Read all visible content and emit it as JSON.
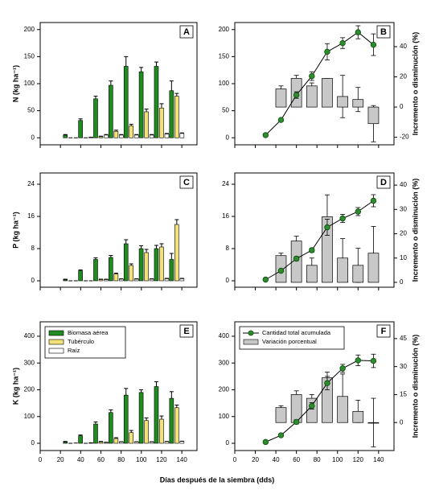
{
  "chart_data": [
    {
      "type": "bar",
      "label": "A",
      "ylabel": "N (kg ha⁻¹)",
      "x": [
        30,
        45,
        60,
        75,
        90,
        105,
        120,
        135
      ],
      "series": [
        {
          "color": "#1e8c1e",
          "values": [
            5,
            32,
            72,
            97,
            132,
            122,
            132,
            87
          ],
          "errors": [
            1,
            3,
            5,
            8,
            18,
            8,
            8,
            18
          ]
        },
        {
          "color": "#f3e27a",
          "values": [
            0,
            0,
            2,
            12,
            22,
            48,
            55,
            77
          ],
          "errors": [
            0,
            0,
            1,
            2,
            3,
            5,
            8,
            5
          ]
        },
        {
          "color": "#ffffff",
          "values": [
            0,
            1,
            5,
            5,
            5,
            5,
            7,
            8
          ],
          "errors": [
            0,
            0,
            1,
            1,
            1,
            1,
            1,
            1
          ]
        }
      ],
      "xlim": [
        0,
        155
      ],
      "xticks": [
        0,
        20,
        40,
        60,
        80,
        100,
        120,
        140
      ],
      "ylim": [
        -13,
        213
      ],
      "yticks": [
        0,
        50,
        100,
        150,
        200
      ]
    },
    {
      "type": "combo",
      "label": "B",
      "y2label": "Incremento o disminución (%)",
      "series": [
        {
          "color": "#2e8b2e",
          "x": [
            30,
            45,
            60,
            75,
            90,
            105,
            120,
            135
          ],
          "values": [
            5,
            33,
            79,
            114,
            159,
            175,
            195,
            172
          ],
          "errors": [
            0,
            3,
            6,
            8,
            15,
            10,
            12,
            20
          ]
        },
        {
          "color": "#c8c8c8",
          "axis": "y2",
          "x": [
            45,
            60,
            75,
            90,
            105,
            120,
            135
          ],
          "values": [
            12,
            19,
            14,
            19,
            7,
            5,
            -11
          ],
          "errors": [
            2,
            2,
            2,
            0,
            14,
            8,
            12
          ]
        }
      ],
      "xlim": [
        0,
        155
      ],
      "xticks": [
        0,
        20,
        40,
        60,
        80,
        100,
        120,
        140
      ],
      "ylim": [
        -13,
        213
      ],
      "yticks": [
        0,
        50,
        100,
        150,
        200
      ],
      "y2lim": [
        -25,
        56
      ],
      "y2ticks": [
        -20,
        0,
        20,
        40
      ]
    },
    {
      "type": "bar",
      "label": "C",
      "ylabel": "P (kg ha⁻¹)",
      "x": [
        30,
        45,
        60,
        75,
        90,
        105,
        120,
        135
      ],
      "series": [
        {
          "color": "#1e8c1e",
          "values": [
            0.3,
            2.5,
            5.3,
            5.8,
            9.2,
            8.0,
            8.0,
            5.3
          ],
          "errors": [
            0.1,
            0.2,
            0.4,
            0.5,
            1,
            0.7,
            0.8,
            1.5
          ]
        },
        {
          "color": "#f3e27a",
          "values": [
            0,
            0,
            0.3,
            1.7,
            3.8,
            7,
            8.4,
            14
          ],
          "errors": [
            0,
            0,
            0.1,
            0.2,
            0.4,
            0.8,
            0.8,
            1.2
          ]
        },
        {
          "color": "#ffffff",
          "values": [
            0,
            0,
            0.3,
            0.4,
            0.4,
            0.4,
            0.5,
            0.5
          ],
          "errors": [
            0,
            0,
            0.1,
            0.1,
            0.1,
            0.1,
            0.1,
            0.1
          ]
        }
      ],
      "xlim": [
        0,
        155
      ],
      "xticks": [
        0,
        20,
        40,
        60,
        80,
        100,
        120,
        140
      ],
      "ylim": [
        -1.6,
        26.8
      ],
      "yticks": [
        0,
        8,
        16,
        24
      ]
    },
    {
      "type": "combo",
      "label": "D",
      "y2label": "Incremento o disminución (%)",
      "series": [
        {
          "color": "#2e8b2e",
          "x": [
            30,
            45,
            60,
            75,
            90,
            105,
            120,
            135
          ],
          "values": [
            0.3,
            2.5,
            5.5,
            7.6,
            13.3,
            15.5,
            17.2,
            19.9
          ],
          "errors": [
            0,
            0.2,
            0.5,
            0.5,
            2,
            1,
            1,
            1.5
          ]
        },
        {
          "color": "#c8c8c8",
          "axis": "y2",
          "x": [
            45,
            60,
            75,
            90,
            105,
            120,
            135
          ],
          "values": [
            11,
            17,
            7,
            27,
            10,
            7,
            12
          ],
          "errors": [
            1,
            2,
            3,
            9,
            8,
            7,
            11
          ]
        }
      ],
      "xlim": [
        0,
        155
      ],
      "xticks": [
        0,
        20,
        40,
        60,
        80,
        100,
        120,
        140
      ],
      "ylim": [
        -1.6,
        26.8
      ],
      "yticks": [
        0,
        8,
        16,
        24
      ],
      "y2lim": [
        -2,
        45
      ],
      "y2ticks": [
        0,
        10,
        20,
        30,
        40
      ]
    },
    {
      "type": "bar",
      "label": "E",
      "ylabel": "K (kg ha⁻¹)",
      "xlabel": "Días después de la siembra (dds)",
      "xtick_labels": true,
      "legend": "upper left",
      "x": [
        30,
        45,
        60,
        75,
        90,
        105,
        120,
        135
      ],
      "series": [
        {
          "name": "Biomasa aérea",
          "color": "#1e8c1e",
          "values": [
            5,
            28,
            72,
            115,
            180,
            190,
            212,
            168
          ],
          "errors": [
            2,
            3,
            8,
            10,
            25,
            10,
            18,
            25
          ]
        },
        {
          "name": "Tubérculo",
          "color": "#f3e27a",
          "values": [
            0,
            0,
            5,
            18,
            40,
            85,
            90,
            133
          ],
          "errors": [
            0,
            0,
            2,
            3,
            8,
            10,
            12,
            10
          ]
        },
        {
          "name": "Raíz",
          "color": "#ffffff",
          "values": [
            0,
            1,
            3,
            5,
            5,
            5,
            6,
            7
          ],
          "errors": [
            1,
            1,
            1,
            1,
            1,
            1,
            1,
            1
          ]
        }
      ],
      "xlim": [
        0,
        155
      ],
      "xticks": [
        0,
        20,
        40,
        60,
        80,
        100,
        120,
        140
      ],
      "ylim": [
        -27,
        454
      ],
      "yticks": [
        0,
        100,
        200,
        300,
        400
      ]
    },
    {
      "type": "combo",
      "label": "F",
      "y2label": "Incremento o disminución (%)",
      "xtick_labels": true,
      "legend": "upper left",
      "series": [
        {
          "name": "Cantidad total acumulada",
          "color": "#2e8b2e",
          "x": [
            30,
            45,
            60,
            75,
            90,
            105,
            120,
            135
          ],
          "values": [
            5,
            30,
            80,
            140,
            225,
            280,
            310,
            308
          ],
          "errors": [
            0,
            3,
            8,
            12,
            25,
            15,
            20,
            25
          ]
        },
        {
          "name": "Variación porcentual",
          "color": "#c8c8c8",
          "axis": "y2",
          "x": [
            45,
            60,
            75,
            90,
            105,
            120,
            135
          ],
          "values": [
            8,
            15,
            13,
            24,
            14,
            6,
            0
          ],
          "errors": [
            1,
            2,
            2,
            3,
            12,
            6,
            13
          ]
        }
      ],
      "xlim": [
        0,
        155
      ],
      "xticks": [
        0,
        20,
        40,
        60,
        80,
        100,
        120,
        140
      ],
      "ylim": [
        -27,
        454
      ],
      "yticks": [
        0,
        100,
        200,
        300,
        400
      ],
      "y2lim": [
        -15,
        54
      ],
      "y2ticks": [
        0,
        15,
        30,
        45
      ]
    }
  ]
}
